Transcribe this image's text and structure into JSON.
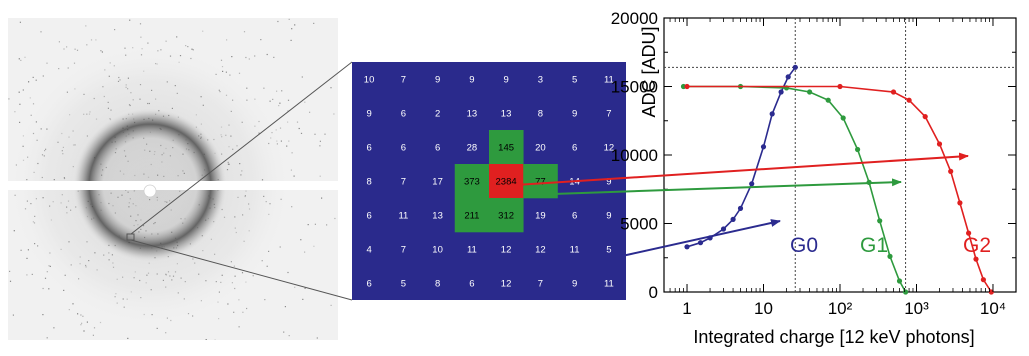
{
  "grid": {
    "rows": [
      [
        "10",
        "7",
        "9",
        "9",
        "9",
        "3",
        "5",
        "11"
      ],
      [
        "9",
        "6",
        "2",
        "13",
        "13",
        "8",
        "9",
        "7"
      ],
      [
        "6",
        "6",
        "6",
        "28",
        "145",
        "20",
        "6",
        "12"
      ],
      [
        "8",
        "7",
        "17",
        "373",
        "2384",
        "77",
        "14",
        "9"
      ],
      [
        "6",
        "11",
        "13",
        "211",
        "312",
        "19",
        "6",
        "9"
      ],
      [
        "4",
        "7",
        "10",
        "11",
        "12",
        "12",
        "11",
        "5"
      ],
      [
        "6",
        "5",
        "8",
        "6",
        "12",
        "7",
        "9",
        "11"
      ]
    ],
    "highlight_green": [
      [
        2,
        4
      ],
      [
        3,
        3
      ],
      [
        3,
        5
      ],
      [
        4,
        3
      ],
      [
        4,
        4
      ]
    ],
    "highlight_red": [
      [
        3,
        4
      ]
    ],
    "background_color": "#2a2a8c",
    "green_color": "#2e9a3e",
    "red_color": "#e02020"
  },
  "chart_data": {
    "type": "line",
    "xlabel": "Integrated charge [12 keV photons]",
    "ylabel": "ADC [ADU]",
    "xscale": "log",
    "xlim": [
      0.5,
      20000
    ],
    "ylim": [
      0,
      20000
    ],
    "y_ticks": [
      "0",
      "5000",
      "10000",
      "15000",
      "20000"
    ],
    "x_ticks": [
      "1",
      "10",
      "10²",
      "10³",
      "10⁴"
    ],
    "series": [
      {
        "name": "G0",
        "color": "#2b2b8f",
        "points": [
          [
            1,
            3300
          ],
          [
            1.5,
            3600
          ],
          [
            2,
            3950
          ],
          [
            3,
            4600
          ],
          [
            4,
            5300
          ],
          [
            5,
            6100
          ],
          [
            7,
            7900
          ],
          [
            10,
            10600
          ],
          [
            13,
            13000
          ],
          [
            17,
            14600
          ],
          [
            21,
            15700
          ],
          [
            26,
            16400
          ]
        ]
      },
      {
        "name": "G1",
        "color": "#2e9a3e",
        "points": [
          [
            0.9,
            15000
          ],
          [
            5,
            15000
          ],
          [
            20,
            14900
          ],
          [
            40,
            14600
          ],
          [
            70,
            14000
          ],
          [
            110,
            12700
          ],
          [
            170,
            10400
          ],
          [
            240,
            8000
          ],
          [
            330,
            5200
          ],
          [
            450,
            2600
          ],
          [
            600,
            800
          ],
          [
            720,
            0
          ]
        ]
      },
      {
        "name": "G2",
        "color": "#e02020",
        "points": [
          [
            1,
            15000
          ],
          [
            100,
            15000
          ],
          [
            500,
            14600
          ],
          [
            800,
            14000
          ],
          [
            1300,
            12800
          ],
          [
            2000,
            10800
          ],
          [
            2800,
            8800
          ],
          [
            3700,
            6500
          ],
          [
            4800,
            4300
          ],
          [
            6000,
            2400
          ],
          [
            7500,
            900
          ],
          [
            9500,
            0
          ]
        ]
      }
    ],
    "vlines": [
      26,
      720
    ],
    "hline": 16400,
    "annotation_labels": [
      "G0",
      "G1",
      "G2"
    ]
  }
}
